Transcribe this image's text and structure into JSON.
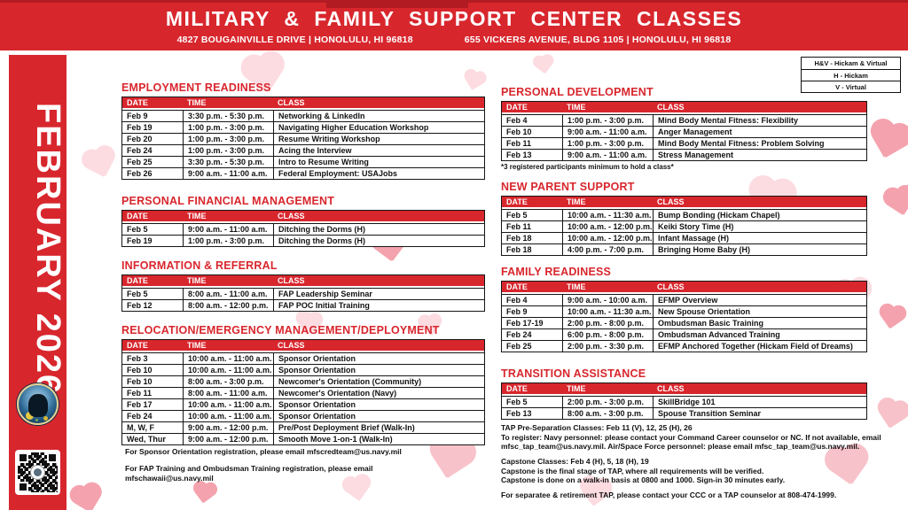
{
  "colors": {
    "brand_red": "#d8262d",
    "accent_dark_red": "#b11b21"
  },
  "header": {
    "title": "MILITARY & FAMILY SUPPORT CENTER CLASSES",
    "address_left": "4827 BOUGAINVILLE DRIVE | HONOLULU, HI 96818",
    "address_right": "655 VICKERS AVENUE, BLDG 1105 | HONOLULU, HI 96818"
  },
  "sidebar": {
    "month": "FEBRUARY 2026",
    "logo_icon": "mfsc-seal",
    "qr_icon": "qr-code"
  },
  "legend": {
    "items": [
      "H&V - Hickam & Virtual",
      "H - Hickam",
      "V - Virtual"
    ]
  },
  "left_sections": [
    {
      "title": "EMPLOYMENT READINESS",
      "columns": [
        "DATE",
        "TIME",
        "CLASS"
      ],
      "rows": [
        {
          "date": "Feb 9",
          "time": "3:30 p.m. - 5:30 p.m.",
          "class": "Networking & LinkedIn"
        },
        {
          "date": "Feb 19",
          "time": "1:00 p.m. - 3:00 p.m.",
          "class": "Navigating Higher Education Workshop"
        },
        {
          "date": "Feb 20",
          "time": "1:00 p.m. - 3:00 p.m.",
          "class": "Resume Writing Workshop"
        },
        {
          "date": "Feb 24",
          "time": "1:00 p.m. - 3:00 p.m.",
          "class": "Acing the Interview"
        },
        {
          "date": "Feb 25",
          "time": "3:30 p.m. - 5:30 p.m.",
          "class": "Intro to Resume Writing"
        },
        {
          "date": "Feb 26",
          "time": "9:00 a.m. - 11:00 a.m.",
          "class": "Federal Employment: USAJobs"
        }
      ]
    },
    {
      "title": "PERSONAL FINANCIAL MANAGEMENT",
      "columns": [
        "DATE",
        "TIME",
        "CLASS"
      ],
      "rows": [
        {
          "date": "Feb 5",
          "time": "9:00 a.m. - 11:00 a.m.",
          "class": "Ditching the Dorms (H)"
        },
        {
          "date": "Feb 19",
          "time": "1:00 p.m. - 3:00 p.m.",
          "class": "Ditching the Dorms (H)"
        }
      ]
    },
    {
      "title": "INFORMATION & REFERRAL",
      "columns": [
        "DATE",
        "TIME",
        "CLASS"
      ],
      "rows": [
        {
          "date": "Feb 5",
          "time": "8:00 a.m. - 11:00 a.m.",
          "class": "FAP Leadership Seminar"
        },
        {
          "date": "Feb 12",
          "time": "8:00 a.m. - 12:00 p.m.",
          "class": "FAP POC Initial Training"
        }
      ]
    },
    {
      "title": "RELOCATION/EMERGENCY MANAGEMENT/DEPLOYMENT",
      "columns": [
        "DATE",
        "TIME",
        "CLASS"
      ],
      "rows": [
        {
          "date": "Feb 3",
          "time": "10:00 a.m. - 11:00 a.m.",
          "class": "Sponsor Orientation"
        },
        {
          "date": "Feb 10",
          "time": "10:00 a.m. - 11:00 a.m.",
          "class": "Sponsor Orientation"
        },
        {
          "date": "Feb 10",
          "time": "8:00 a.m. - 3:00 p.m.",
          "class": "Newcomer's Orientation (Community)"
        },
        {
          "date": "Feb 11",
          "time": "8:00 a.m. - 11:00 a.m.",
          "class": "Newcomer's Orientation (Navy)"
        },
        {
          "date": "Feb 17",
          "time": "10:00 a.m. - 11:00 a.m.",
          "class": "Sponsor Orientation"
        },
        {
          "date": "Feb 24",
          "time": "10:00 a.m. - 11:00 a.m.",
          "class": "Sponsor Orientation"
        },
        {
          "date": "M, W, F",
          "time": "9:00 a.m. - 12:00 p.m.",
          "class": "Pre/Post Deployment Brief (Walk-In)"
        },
        {
          "date": "Wed, Thur",
          "time": "9:00 a.m. - 12:00 p.m.",
          "class": "Smooth Move 1-on-1 (Walk-In)"
        }
      ]
    }
  ],
  "right_sections": [
    {
      "title": "PERSONAL DEVELOPMENT",
      "columns": [
        "DATE",
        "TIME",
        "CLASS"
      ],
      "rows": [
        {
          "date": "Feb 4",
          "time": "1:00 p.m. - 3:00 p.m.",
          "class": "Mind Body Mental Fitness: Flexibility"
        },
        {
          "date": "Feb 10",
          "time": "9:00 a.m. - 11:00 a.m.",
          "class": "Anger Management"
        },
        {
          "date": "Feb 11",
          "time": "1:00 p.m. - 3:00 p.m.",
          "class": "Mind Body Mental Fitness: Problem Solving"
        },
        {
          "date": "Feb 13",
          "time": "9:00 a.m. - 11:00 a.m.",
          "class": "Stress Management"
        }
      ],
      "footnote": "*3 registered participants minimum to hold a class*"
    },
    {
      "title": "NEW PARENT SUPPORT",
      "columns": [
        "DATE",
        "TIME",
        "CLASS"
      ],
      "rows": [
        {
          "date": "Feb 5",
          "time": "10:00 a.m. - 11:30 a.m.",
          "class": "Bump Bonding (Hickam Chapel)"
        },
        {
          "date": "Feb 11",
          "time": "10:00 a.m. - 12:00 p.m.",
          "class": "Keiki Story Time (H)"
        },
        {
          "date": "Feb 18",
          "time": "10:00 a.m. - 12:00 p.m.",
          "class": "Infant Massage (H)"
        },
        {
          "date": "Feb 18",
          "time": "4:00 p.m. - 7:00 p.m.",
          "class": "Bringing Home Baby (H)"
        }
      ]
    },
    {
      "title": "FAMILY READINESS",
      "columns": [
        "DATE",
        "TIME",
        "CLASS"
      ],
      "rows": [
        {
          "date": "Feb 4",
          "time": "9:00 a.m. - 10:00 a.m.",
          "class": "EFMP Overview"
        },
        {
          "date": "Feb 9",
          "time": "10:00 a.m. - 11:30 a.m.",
          "class": "New Spouse Orientation"
        },
        {
          "date": "Feb 17-19",
          "time": "2:00 p.m. - 8:00 p.m.",
          "class": "Ombudsman Basic Training"
        },
        {
          "date": "Feb 24",
          "time": "6:00 p.m. - 8:00 p.m.",
          "class": "Ombudsman Advanced Training"
        },
        {
          "date": "Feb 25",
          "time": "2:00 p.m. - 3:30 p.m.",
          "class": "EFMP Anchored Together (Hickam Field of Dreams)"
        }
      ]
    },
    {
      "title": "TRANSITION ASSISTANCE",
      "columns": [
        "DATE",
        "TIME",
        "CLASS"
      ],
      "rows": [
        {
          "date": "Feb 5",
          "time": "2:00 p.m. - 3:00 p.m.",
          "class": "SkillBridge 101"
        },
        {
          "date": "Feb 13",
          "time": "8:00 a.m. - 3:00 p.m.",
          "class": "Spouse Transition Seminar"
        }
      ]
    }
  ],
  "left_notes": {
    "sponsor": "For Sponsor Orientation registration, please email mfscredteam@us.navy.mil",
    "fap": "For FAP Training and Ombudsman Training registration, please email\nmfschawaii@us.navy.mil"
  },
  "tap_notes": {
    "p1": "TAP Pre-Separation Classes: Feb 11 (V), 12, 25 (H), 26\nTo register: Navy personnel: please contact your Command Career counselor or NC. If not available, email mfsc_tap_team@us.navy.mil. Air/Space Force personnel: please email mfsc_tap_team@us.navy.mil.",
    "p2": "Capstone Classes: Feb 4 (H), 5, 18 (H), 19\nCapstone is the final stage of TAP, where all requirements will be verified.\nCapstone is done on a walk-in basis at 0800 and 1000. Sign-in 30 minutes early.",
    "p3": "For separatee & retirement TAP, please contact your CCC or a TAP counselor at 808-474-1999."
  }
}
